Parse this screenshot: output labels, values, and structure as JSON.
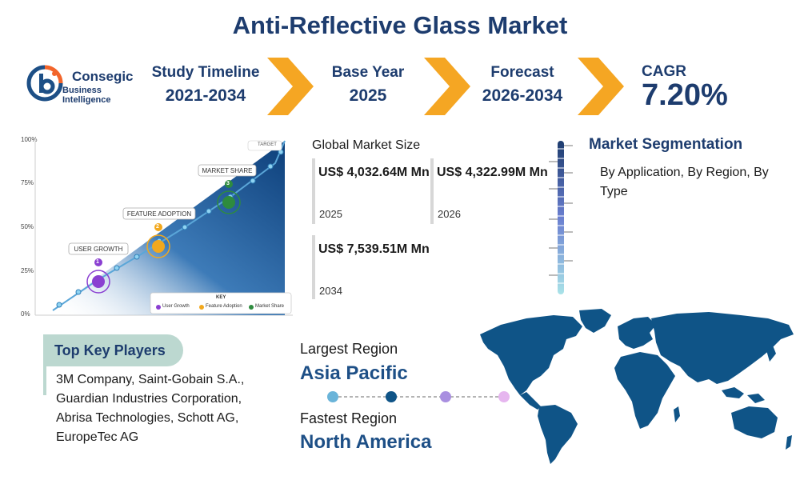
{
  "title": "Anti-Reflective Glass Market",
  "logo": {
    "name": "Consegic",
    "subtitle": "Business Intelligence"
  },
  "stats": {
    "study_timeline": {
      "label": "Study Timeline",
      "value": "2021-2034"
    },
    "base_year": {
      "label": "Base Year",
      "value": "2025"
    },
    "forecast": {
      "label": "Forecast",
      "value": "2026-2034"
    },
    "cagr": {
      "label": "CAGR",
      "value": "7.20%"
    }
  },
  "growth_chart": {
    "y_ticks": [
      "100%",
      "75%",
      "50%",
      "25%",
      "0%"
    ],
    "target_label": "TARGET",
    "milestones": [
      {
        "number": "1",
        "label": "USER GROWTH",
        "color": "#8a3fd1"
      },
      {
        "number": "2",
        "label": "FEATURE ADOPTION",
        "color": "#f2a81d"
      },
      {
        "number": "3",
        "label": "MARKET SHARE",
        "color": "#2e8b3e"
      }
    ],
    "key": {
      "title": "KEY",
      "items": [
        "User Growth",
        "Feature Adoption",
        "Market Share"
      ]
    }
  },
  "market_size": {
    "title": "Global Market Size",
    "cards": [
      {
        "amount": "US$ 4,032.64M Mn",
        "year": "2025"
      },
      {
        "amount": "US$ 4,322.99M Mn",
        "year": "2026"
      },
      {
        "amount": "US$ 7,539.51M Mn",
        "year": "2034"
      }
    ]
  },
  "segmentation": {
    "title": "Market Segmentation",
    "text": "By Application, By Region, By Type"
  },
  "key_players": {
    "title": "Top Key Players",
    "text": "3M Company, Saint-Gobain S.A., Guardian Industries Corporation, Abrisa Technologies, Schott AG, EuropeTec AG"
  },
  "regions": {
    "largest_label": "Largest Region",
    "largest_value": "Asia Pacific",
    "fastest_label": "Fastest Region",
    "fastest_value": "North America"
  },
  "colors": {
    "navy": "#1d3c6e",
    "orange": "#f5a623",
    "map_blue": "#0f5487"
  }
}
